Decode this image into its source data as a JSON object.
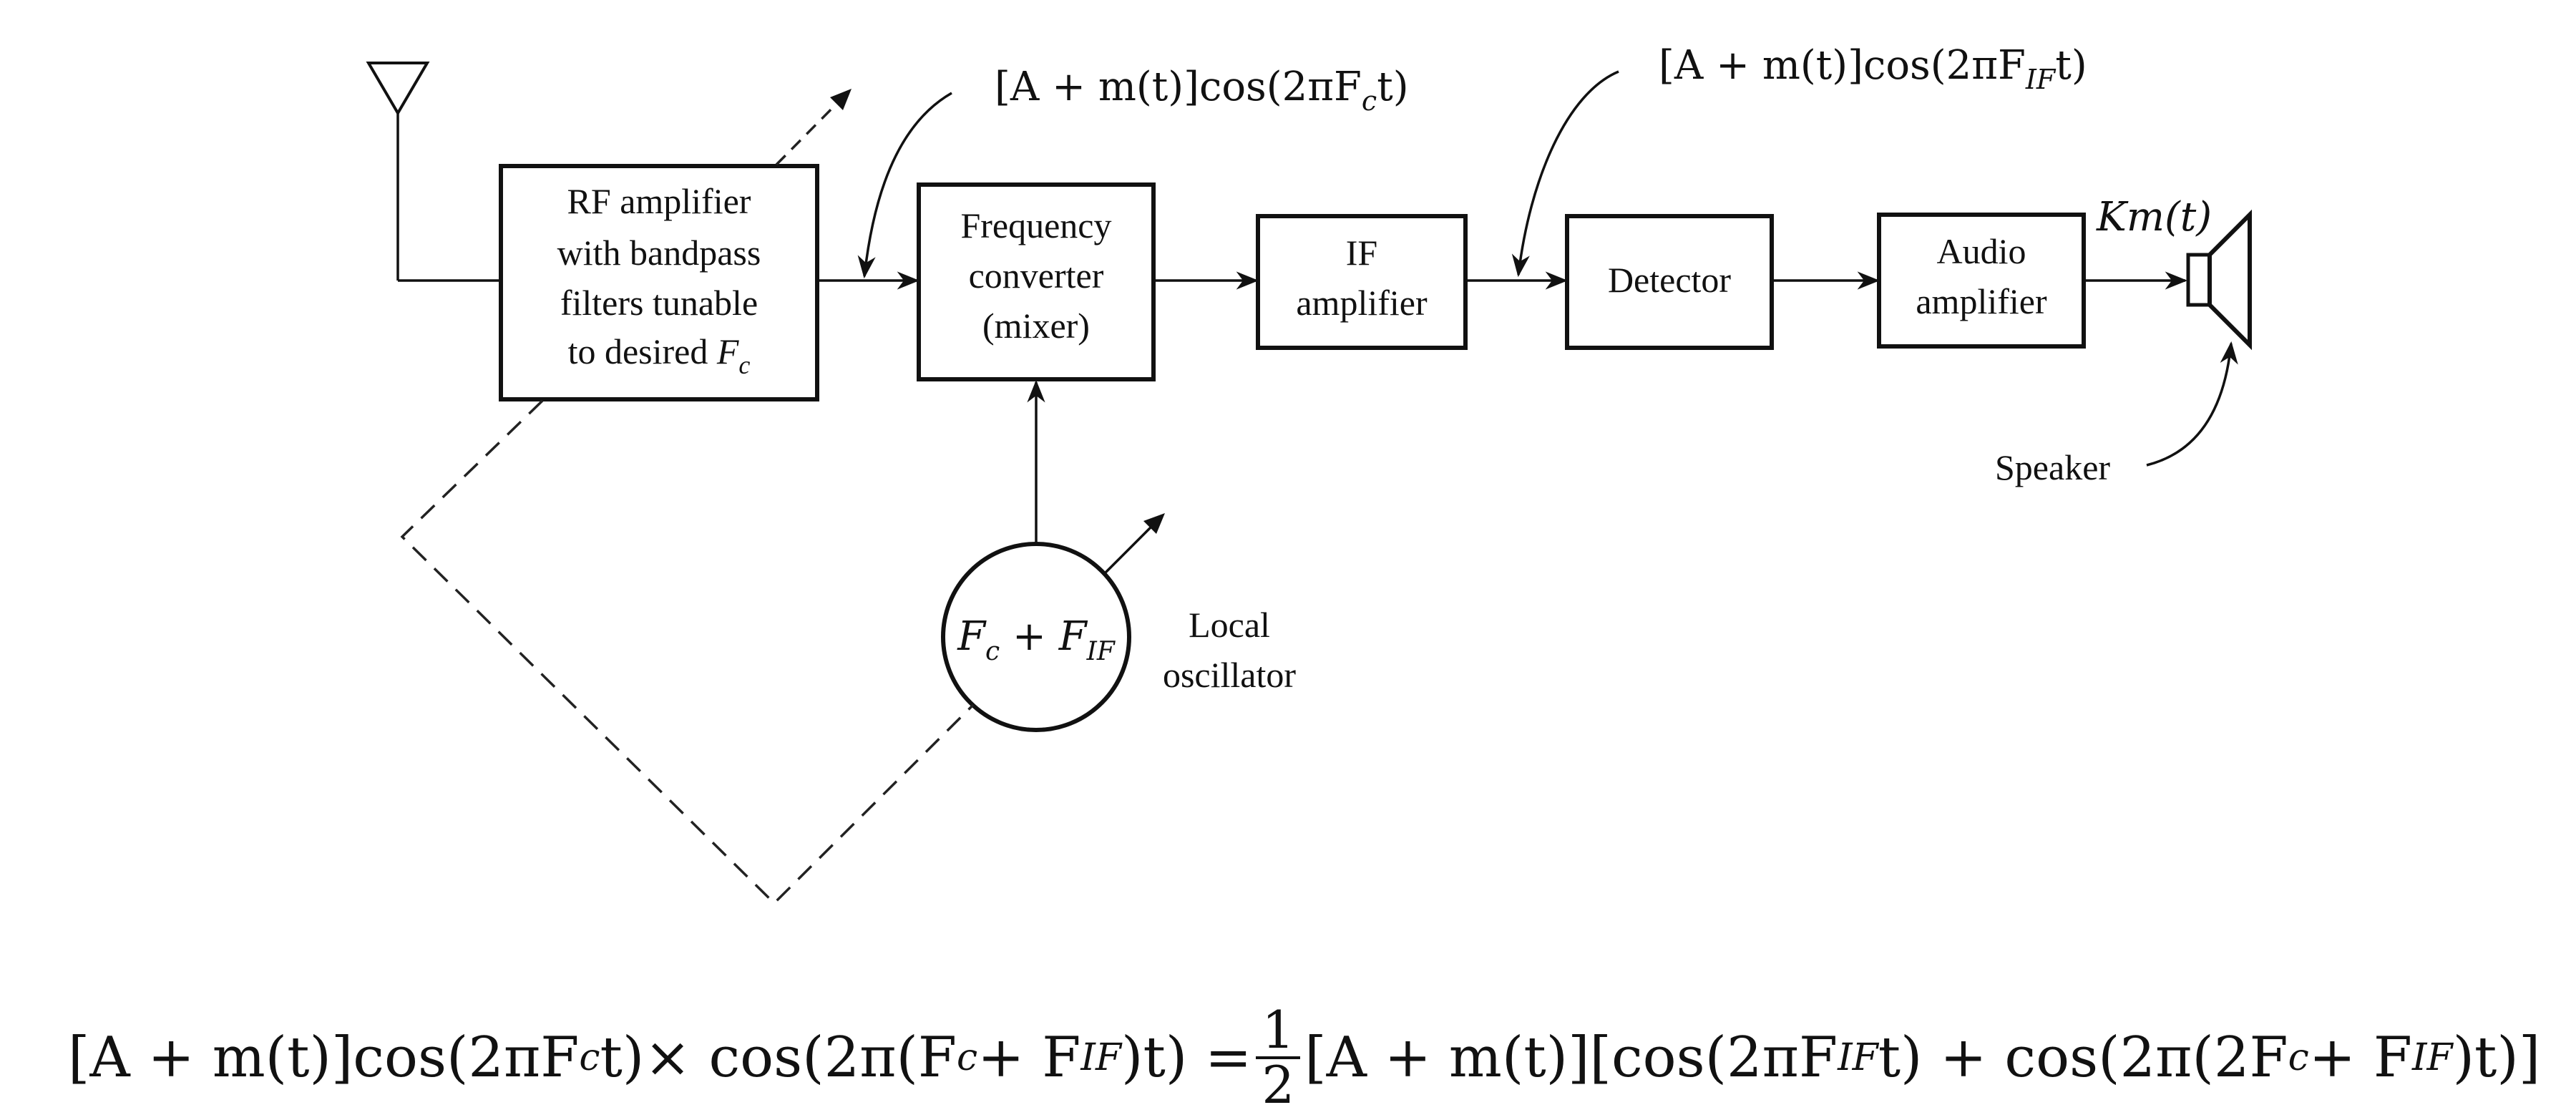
{
  "blocks": {
    "rf_amplifier": {
      "line1": "RF amplifier",
      "line2": "with bandpass",
      "line3": "filters tunable",
      "line4_prefix": "to desired ",
      "line4_symbol": "F",
      "line4_sub": "c"
    },
    "mixer": {
      "line1": "Frequency",
      "line2": "converter",
      "line3": "(mixer)"
    },
    "if_amplifier": {
      "line1": "IF",
      "line2": "amplifier"
    },
    "detector": {
      "label": "Detector"
    },
    "audio_amplifier": {
      "line1": "Audio",
      "line2": "amplifier"
    },
    "local_oscillator": {
      "circle_text_a": "F",
      "circle_sub_a": "c",
      "circle_plus": " + ",
      "circle_text_b": "F",
      "circle_sub_b": "IF",
      "label_line1": "Local",
      "label_line2": "oscillator"
    }
  },
  "signals": {
    "rf_out": {
      "pre": "[A + m(t)]cos(2πF",
      "sub": "c",
      "post": "t)"
    },
    "if_out": {
      "pre": "[A + m(t)]cos(2πF",
      "sub": "IF",
      "post": "t)"
    },
    "audio_out": "Km(t)",
    "speaker_label": "Speaker"
  },
  "equation": {
    "lhs_a": "[A + m(t)]cos(2πF",
    "lhs_a_sub": "c",
    "lhs_a_post": "t)× cos(2π(F",
    "lhs_b_sub": "c",
    "lhs_b_mid": " + F",
    "lhs_b_sub2": "IF",
    "lhs_b_post": ")t) =",
    "frac_num": "1",
    "frac_den": "2",
    "rhs_a": "[A + m(t)][cos(2πF",
    "rhs_a_sub": "IF",
    "rhs_a_post": "t) + cos(2π(2F",
    "rhs_b_sub": "c",
    "rhs_b_mid": " + F",
    "rhs_b_sub2": "IF",
    "rhs_b_post": ")t)]"
  }
}
